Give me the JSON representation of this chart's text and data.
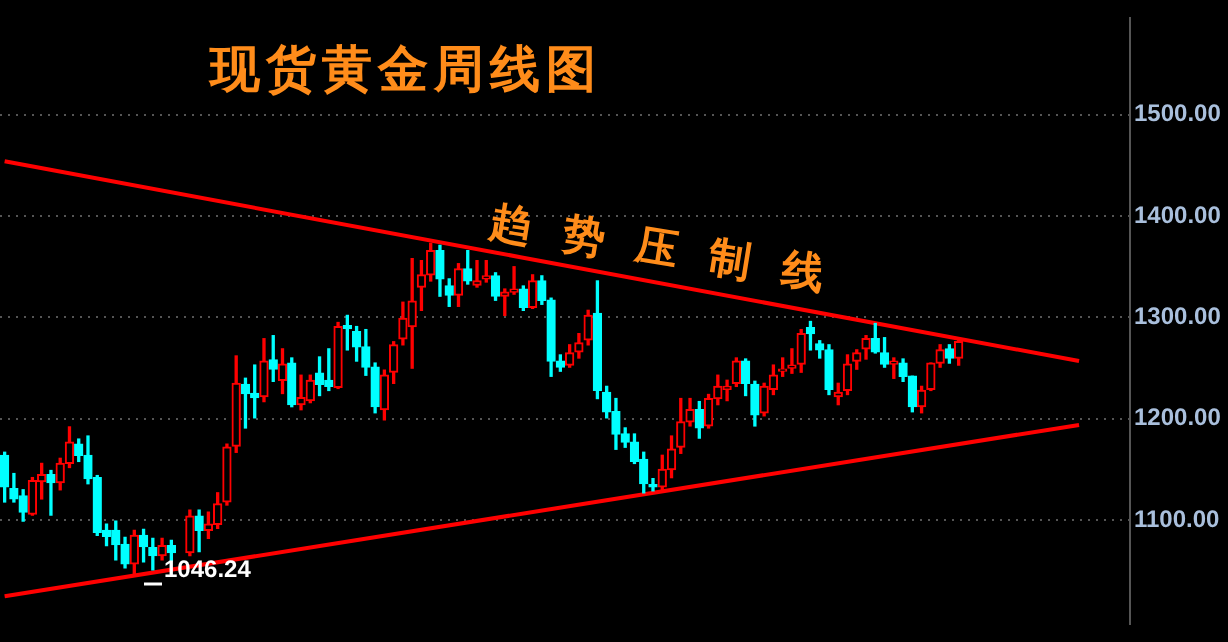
{
  "chart_data": {
    "type": "candlestick",
    "title": "现货黄金周线图",
    "categories": [
      null,
      null,
      null,
      null,
      null,
      null,
      null,
      null,
      null,
      null,
      null,
      null,
      null,
      null,
      null,
      null,
      null,
      null,
      null,
      null,
      null,
      null,
      null,
      null,
      null,
      null,
      null,
      null,
      null,
      null,
      null,
      null,
      null,
      null,
      null,
      null,
      null,
      null,
      null,
      null,
      null,
      null,
      null,
      null,
      null,
      null,
      null,
      null,
      null,
      null,
      null,
      null,
      null,
      null,
      null,
      null,
      null,
      null,
      null,
      null,
      null,
      null,
      null,
      null,
      null,
      null,
      null,
      null,
      null,
      null,
      null,
      null,
      null,
      null,
      null,
      null,
      null,
      null,
      null,
      null,
      null,
      null,
      null,
      null,
      null,
      null,
      null,
      null,
      null,
      null,
      null,
      null,
      null,
      null,
      null,
      null,
      null,
      null,
      null,
      null,
      null,
      null,
      null,
      null,
      null,
      null,
      null,
      null,
      null,
      null,
      null,
      null,
      null,
      null,
      null,
      null,
      null,
      null,
      null,
      null,
      null,
      null
    ],
    "series": [
      {
        "ohlc": [
          [
            1164,
            1167,
            1118,
            1133
          ],
          [
            1131,
            1146,
            1118,
            1121
          ],
          [
            1124,
            1130,
            1099,
            1108
          ],
          [
            1106,
            1142,
            1105,
            1139
          ],
          [
            1138,
            1156,
            1121,
            1145
          ],
          [
            1145,
            1149,
            1105,
            1137
          ],
          [
            1137,
            1161,
            1130,
            1156
          ],
          [
            1156,
            1192,
            1152,
            1177
          ],
          [
            1175,
            1180,
            1158,
            1164
          ],
          [
            1164,
            1183,
            1136,
            1141
          ],
          [
            1142,
            1144,
            1085,
            1088
          ],
          [
            1090,
            1096,
            1075,
            1084
          ],
          [
            1090,
            1099,
            1061,
            1076
          ],
          [
            1076,
            1083,
            1053,
            1057
          ],
          [
            1057,
            1090,
            1046.24,
            1085
          ],
          [
            1085,
            1091,
            1059,
            1074
          ],
          [
            1073,
            1082,
            1051,
            1065
          ],
          [
            1065,
            1082,
            1061,
            1075
          ],
          [
            1075,
            1080,
            1060,
            1068
          ],
          null,
          [
            1068,
            1110,
            1065,
            1104
          ],
          [
            1104,
            1110,
            1069,
            1090
          ],
          [
            1090,
            1108,
            1082,
            1096
          ],
          [
            1096,
            1127,
            1092,
            1116
          ],
          [
            1118,
            1175,
            1115,
            1172
          ],
          [
            1173,
            1262,
            1167,
            1235
          ],
          [
            1234,
            1240,
            1191,
            1225
          ],
          [
            1225,
            1253,
            1201,
            1221
          ],
          [
            1222,
            1279,
            1217,
            1257
          ],
          [
            1258,
            1282,
            1237,
            1249
          ],
          [
            1238,
            1269,
            1225,
            1254
          ],
          [
            1255,
            1260,
            1212,
            1214
          ],
          [
            1214,
            1243,
            1209,
            1221
          ],
          [
            1218,
            1243,
            1216,
            1238
          ],
          [
            1245,
            1261,
            1223,
            1234
          ],
          [
            1238,
            1269,
            1228,
            1232
          ],
          [
            1231,
            1295,
            1230,
            1291
          ],
          [
            1292,
            1302,
            1268,
            1289
          ],
          [
            1286,
            1291,
            1257,
            1271
          ],
          [
            1271,
            1288,
            1243,
            1251
          ],
          [
            1251,
            1255,
            1206,
            1212
          ],
          [
            1209,
            1248,
            1199,
            1243
          ],
          [
            1246,
            1276,
            1235,
            1273
          ],
          [
            1279,
            1315,
            1273,
            1299
          ],
          [
            1291,
            1358,
            1250,
            1316
          ],
          [
            1330,
            1356,
            1307,
            1342
          ],
          [
            1342,
            1373,
            1336,
            1366
          ],
          [
            1366,
            1371,
            1321,
            1338
          ],
          [
            1331,
            1338,
            1311,
            1322
          ],
          [
            1322,
            1353,
            1311,
            1348
          ],
          [
            1348,
            1366,
            1333,
            1336
          ],
          [
            1332,
            1356,
            1330,
            1336
          ],
          [
            1338,
            1356,
            1335,
            1341
          ],
          [
            1341,
            1344,
            1317,
            1321
          ],
          [
            1321,
            1328,
            1302,
            1325
          ],
          [
            1325,
            1350,
            1323,
            1328
          ],
          [
            1328,
            1331,
            1307,
            1310
          ],
          [
            1310,
            1342,
            1309,
            1336
          ],
          [
            1336,
            1341,
            1313,
            1317
          ],
          [
            1317,
            1319,
            1242,
            1257
          ],
          [
            1257,
            1263,
            1247,
            1251
          ],
          [
            1253,
            1273,
            1251,
            1265
          ],
          [
            1266,
            1284,
            1260,
            1275
          ],
          [
            1278,
            1307,
            1273,
            1302
          ],
          [
            1304,
            1336,
            1220,
            1228
          ],
          [
            1226,
            1232,
            1201,
            1207
          ],
          [
            1207,
            1220,
            1170,
            1185
          ],
          [
            1185,
            1191,
            1172,
            1177
          ],
          [
            1177,
            1185,
            1156,
            1158
          ],
          [
            1160,
            1167,
            1127,
            1136
          ],
          [
            1135,
            1141,
            1129,
            1133
          ],
          [
            1133,
            1164,
            1129,
            1150
          ],
          [
            1150,
            1183,
            1142,
            1170
          ],
          [
            1172,
            1220,
            1166,
            1197
          ],
          [
            1197,
            1220,
            1193,
            1209
          ],
          [
            1209,
            1217,
            1181,
            1191
          ],
          [
            1193,
            1224,
            1191,
            1220
          ],
          [
            1220,
            1243,
            1214,
            1232
          ],
          [
            1229,
            1238,
            1218,
            1232
          ],
          [
            1235,
            1260,
            1232,
            1257
          ],
          [
            1257,
            1259,
            1223,
            1235
          ],
          [
            1234,
            1237,
            1193,
            1204
          ],
          [
            1206,
            1235,
            1203,
            1232
          ],
          [
            1229,
            1253,
            1224,
            1243
          ],
          [
            1247,
            1260,
            1242,
            1249
          ],
          [
            1250,
            1269,
            1245,
            1253
          ],
          [
            1254,
            1288,
            1246,
            1284
          ],
          [
            1290,
            1296,
            1268,
            1284
          ],
          [
            1274,
            1277,
            1260,
            1268
          ],
          [
            1268,
            1273,
            1224,
            1229
          ],
          [
            1222,
            1235,
            1214,
            1226
          ],
          [
            1228,
            1263,
            1224,
            1254
          ],
          [
            1257,
            1268,
            1249,
            1265
          ],
          [
            1269,
            1282,
            1259,
            1279
          ],
          [
            1279,
            1294,
            1265,
            1266
          ],
          [
            1265,
            1280,
            1251,
            1254
          ],
          [
            1254,
            1260,
            1240,
            1257
          ],
          [
            1255,
            1259,
            1237,
            1242
          ],
          [
            1242,
            1242,
            1207,
            1212
          ],
          [
            1212,
            1232,
            1206,
            1228
          ],
          [
            1229,
            1255,
            1228,
            1255
          ],
          [
            1255,
            1273,
            1251,
            1268
          ],
          [
            1269,
            1273,
            1255,
            1260
          ],
          [
            1260,
            1279,
            1253,
            1276
          ],
          null,
          null,
          null,
          null,
          null,
          null,
          null,
          null,
          null,
          null,
          null,
          null,
          null,
          null,
          null,
          null,
          null,
          null
        ],
        "colors": [
          "#00ffff",
          "#00ffff",
          "#00ffff",
          "#ff0000",
          "#ff0000",
          "#00ffff",
          "#ff0000",
          "#ff0000",
          "#00ffff",
          "#00ffff",
          "#00ffff",
          "#00ffff",
          "#00ffff",
          "#00ffff",
          "#ff0000",
          "#00ffff",
          "#00ffff",
          "#ff0000",
          "#00ffff",
          null,
          "#ff0000",
          "#00ffff",
          "#ff0000",
          "#ff0000",
          "#ff0000",
          "#ff0000",
          "#00ffff",
          "#00ffff",
          "#ff0000",
          "#00ffff",
          "#ff0000",
          "#00ffff",
          "#ff0000",
          "#ff0000",
          "#00ffff",
          "#00ffff",
          "#ff0000",
          "#00ffff",
          "#00ffff",
          "#00ffff",
          "#00ffff",
          "#ff0000",
          "#ff0000",
          "#ff0000",
          "#ff0000",
          "#ff0000",
          "#ff0000",
          "#00ffff",
          "#00ffff",
          "#ff0000",
          "#00ffff",
          "#ff0000",
          "#ff0000",
          "#00ffff",
          "#ff0000",
          "#ff0000",
          "#00ffff",
          "#ff0000",
          "#00ffff",
          "#00ffff",
          "#00ffff",
          "#ff0000",
          "#ff0000",
          "#ff0000",
          "#00ffff",
          "#00ffff",
          "#00ffff",
          "#00ffff",
          "#00ffff",
          "#00ffff",
          "#00ffff",
          "#ff0000",
          "#ff0000",
          "#ff0000",
          "#ff0000",
          "#00ffff",
          "#ff0000",
          "#ff0000",
          "#ff0000",
          "#ff0000",
          "#00ffff",
          "#00ffff",
          "#ff0000",
          "#ff0000",
          "#ff0000",
          "#ff0000",
          "#ff0000",
          "#00ffff",
          "#00ffff",
          "#00ffff",
          "#ff0000",
          "#ff0000",
          "#ff0000",
          "#ff0000",
          "#00ffff",
          "#00ffff",
          "#ff0000",
          "#00ffff",
          "#00ffff",
          "#ff0000",
          "#ff0000",
          "#ff0000",
          "#00ffff",
          "#ff0000",
          null,
          null,
          null,
          null,
          null,
          null,
          null,
          null,
          null,
          null,
          null,
          null,
          null,
          null,
          null,
          null,
          null,
          null
        ]
      },
      {
        "type": "line",
        "color": "#ff0000",
        "values": [
          1454,
          null,
          null,
          null,
          null,
          null,
          null,
          null,
          null,
          null,
          null,
          null,
          null,
          null,
          null,
          null,
          null,
          null,
          null,
          null,
          null,
          null,
          null,
          null,
          null,
          null,
          null,
          null,
          null,
          null,
          null,
          null,
          null,
          null,
          null,
          null,
          null,
          null,
          null,
          null,
          null,
          null,
          null,
          null,
          null,
          null,
          null,
          null,
          null,
          null,
          null,
          null,
          null,
          null,
          null,
          null,
          null,
          null,
          null,
          null,
          null,
          null,
          null,
          null,
          null,
          null,
          null,
          null,
          null,
          null,
          null,
          null,
          null,
          null,
          null,
          null,
          null,
          null,
          null,
          null,
          null,
          null,
          null,
          null,
          null,
          null,
          null,
          null,
          null,
          null,
          null,
          null,
          null,
          null,
          null,
          null,
          null,
          null,
          null,
          null,
          null,
          null,
          null,
          null,
          null,
          null,
          null,
          null,
          null,
          null,
          null,
          null,
          null,
          null,
          null,
          null,
          1257,
          null,
          null,
          null,
          null,
          null
        ]
      },
      {
        "type": "line",
        "color": "#ff0000",
        "values": [
          1025,
          null,
          null,
          null,
          null,
          null,
          null,
          null,
          null,
          null,
          null,
          null,
          null,
          null,
          null,
          null,
          null,
          null,
          null,
          null,
          null,
          null,
          null,
          null,
          null,
          null,
          null,
          null,
          null,
          null,
          null,
          null,
          null,
          null,
          null,
          null,
          null,
          null,
          null,
          null,
          null,
          null,
          null,
          null,
          null,
          null,
          null,
          null,
          null,
          null,
          null,
          null,
          null,
          null,
          null,
          null,
          null,
          null,
          null,
          null,
          null,
          null,
          null,
          null,
          null,
          null,
          null,
          null,
          null,
          null,
          null,
          null,
          null,
          null,
          null,
          null,
          null,
          null,
          null,
          null,
          null,
          null,
          null,
          null,
          null,
          null,
          null,
          null,
          null,
          null,
          null,
          null,
          null,
          null,
          null,
          null,
          null,
          null,
          null,
          null,
          null,
          null,
          null,
          null,
          null,
          null,
          null,
          null,
          null,
          null,
          null,
          null,
          null,
          null,
          null,
          null,
          1194,
          null,
          null,
          null,
          null,
          null
        ]
      }
    ],
    "annotations": [
      "趋势压制线",
      "1046.24"
    ],
    "ylim": [
      998,
      1595
    ],
    "yticks": [
      {
        "value": 1100,
        "label": "1100.00"
      },
      {
        "value": 1200,
        "label": "1200.00"
      },
      {
        "value": 1300,
        "label": "1300.00"
      },
      {
        "value": 1400,
        "label": "1400.00"
      },
      {
        "value": 1500,
        "label": "1500.00"
      }
    ],
    "grid": "y",
    "legend": false,
    "tick_labels": "y"
  }
}
